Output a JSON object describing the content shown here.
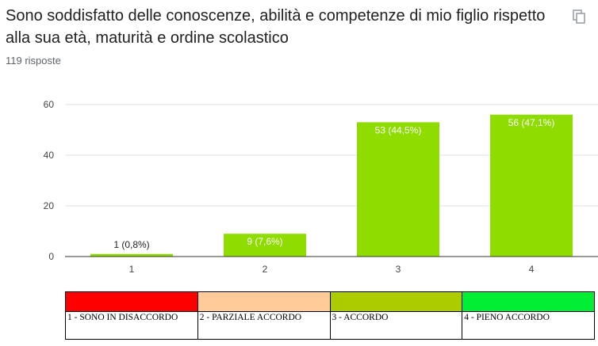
{
  "question": {
    "title": "Sono soddisfatto delle conoscenze, abilità e competenze di mio figlio rispetto alla sua età, maturità e ordine scolastico",
    "responses": "119 risposte",
    "copy_icon": "copy-icon"
  },
  "chart_data": {
    "type": "bar",
    "categories": [
      "1",
      "2",
      "3",
      "4"
    ],
    "values": [
      1,
      9,
      53,
      56
    ],
    "data_labels": [
      "1 (0,8%)",
      "9 (7,6%)",
      "53 (44,5%)",
      "56 (47,1%)"
    ],
    "ylim": [
      0,
      60
    ],
    "yticks": [
      "0",
      "20",
      "40",
      "60"
    ],
    "grid": true,
    "bar_color": "#8fdd00"
  },
  "legend": [
    {
      "label": "1 - SONO IN DISACCORDO",
      "color": "#ff0000"
    },
    {
      "label": "2 - PARZIALE ACCORDO",
      "color": "#ffcc99"
    },
    {
      "label": "3 - ACCORDO",
      "color": "#adcc00"
    },
    {
      "label": "4 - PIENO ACCORDO",
      "color": "#00ee33"
    }
  ]
}
